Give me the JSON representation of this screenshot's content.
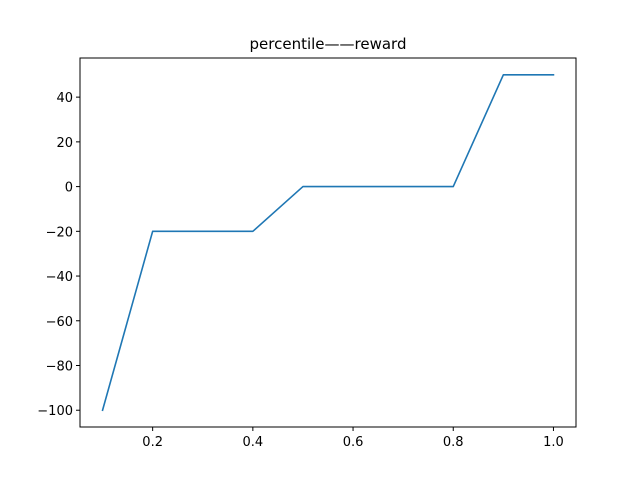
{
  "chart_data": {
    "type": "line",
    "title": "percentile——reward",
    "xlabel": "",
    "ylabel": "",
    "xlim": [
      0.055,
      1.045
    ],
    "ylim": [
      -107.5,
      57.5
    ],
    "grid": false,
    "x_ticks": [
      0.2,
      0.4,
      0.6,
      0.8,
      1.0
    ],
    "x_tick_labels": [
      "0.2",
      "0.4",
      "0.6",
      "0.8",
      "1.0"
    ],
    "y_ticks": [
      -100,
      -80,
      -60,
      -40,
      -20,
      0,
      20,
      40
    ],
    "y_tick_labels": [
      "−100",
      "−80",
      "−60",
      "−40",
      "−20",
      "0",
      "20",
      "40"
    ],
    "series": [
      {
        "color": "#1f77b4",
        "x": [
          0.1,
          0.2,
          0.3,
          0.4,
          0.5,
          0.6,
          0.7,
          0.8,
          0.9,
          1.0
        ],
        "y": [
          -100,
          -20,
          -20,
          -20,
          0,
          0,
          0,
          0,
          50,
          50
        ]
      }
    ]
  }
}
